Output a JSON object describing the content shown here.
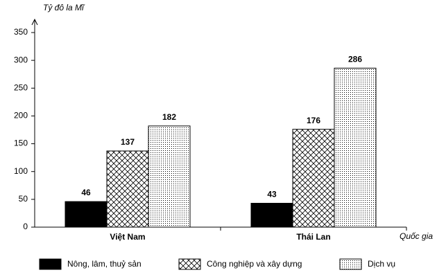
{
  "chart_data": {
    "type": "bar",
    "y_label": "Tỷ đô la Mĩ",
    "x_label": "Quốc gia",
    "categories": [
      "Việt Nam",
      "Thái Lan"
    ],
    "series": [
      {
        "name": "Nông, lâm, thuỷ sản",
        "color": "#000000",
        "pattern": "solid",
        "values": [
          46,
          43
        ]
      },
      {
        "name": "Công nghiệp và xây dựng",
        "color": "#000000",
        "pattern": "crosshatch",
        "values": [
          137,
          176
        ]
      },
      {
        "name": "Dịch vụ",
        "color": "#000000",
        "pattern": "dots",
        "values": [
          182,
          286
        ]
      }
    ],
    "ylim": [
      0,
      350
    ],
    "yticks": [
      0,
      50,
      100,
      150,
      200,
      250,
      300,
      350
    ],
    "legend": "bottom"
  }
}
